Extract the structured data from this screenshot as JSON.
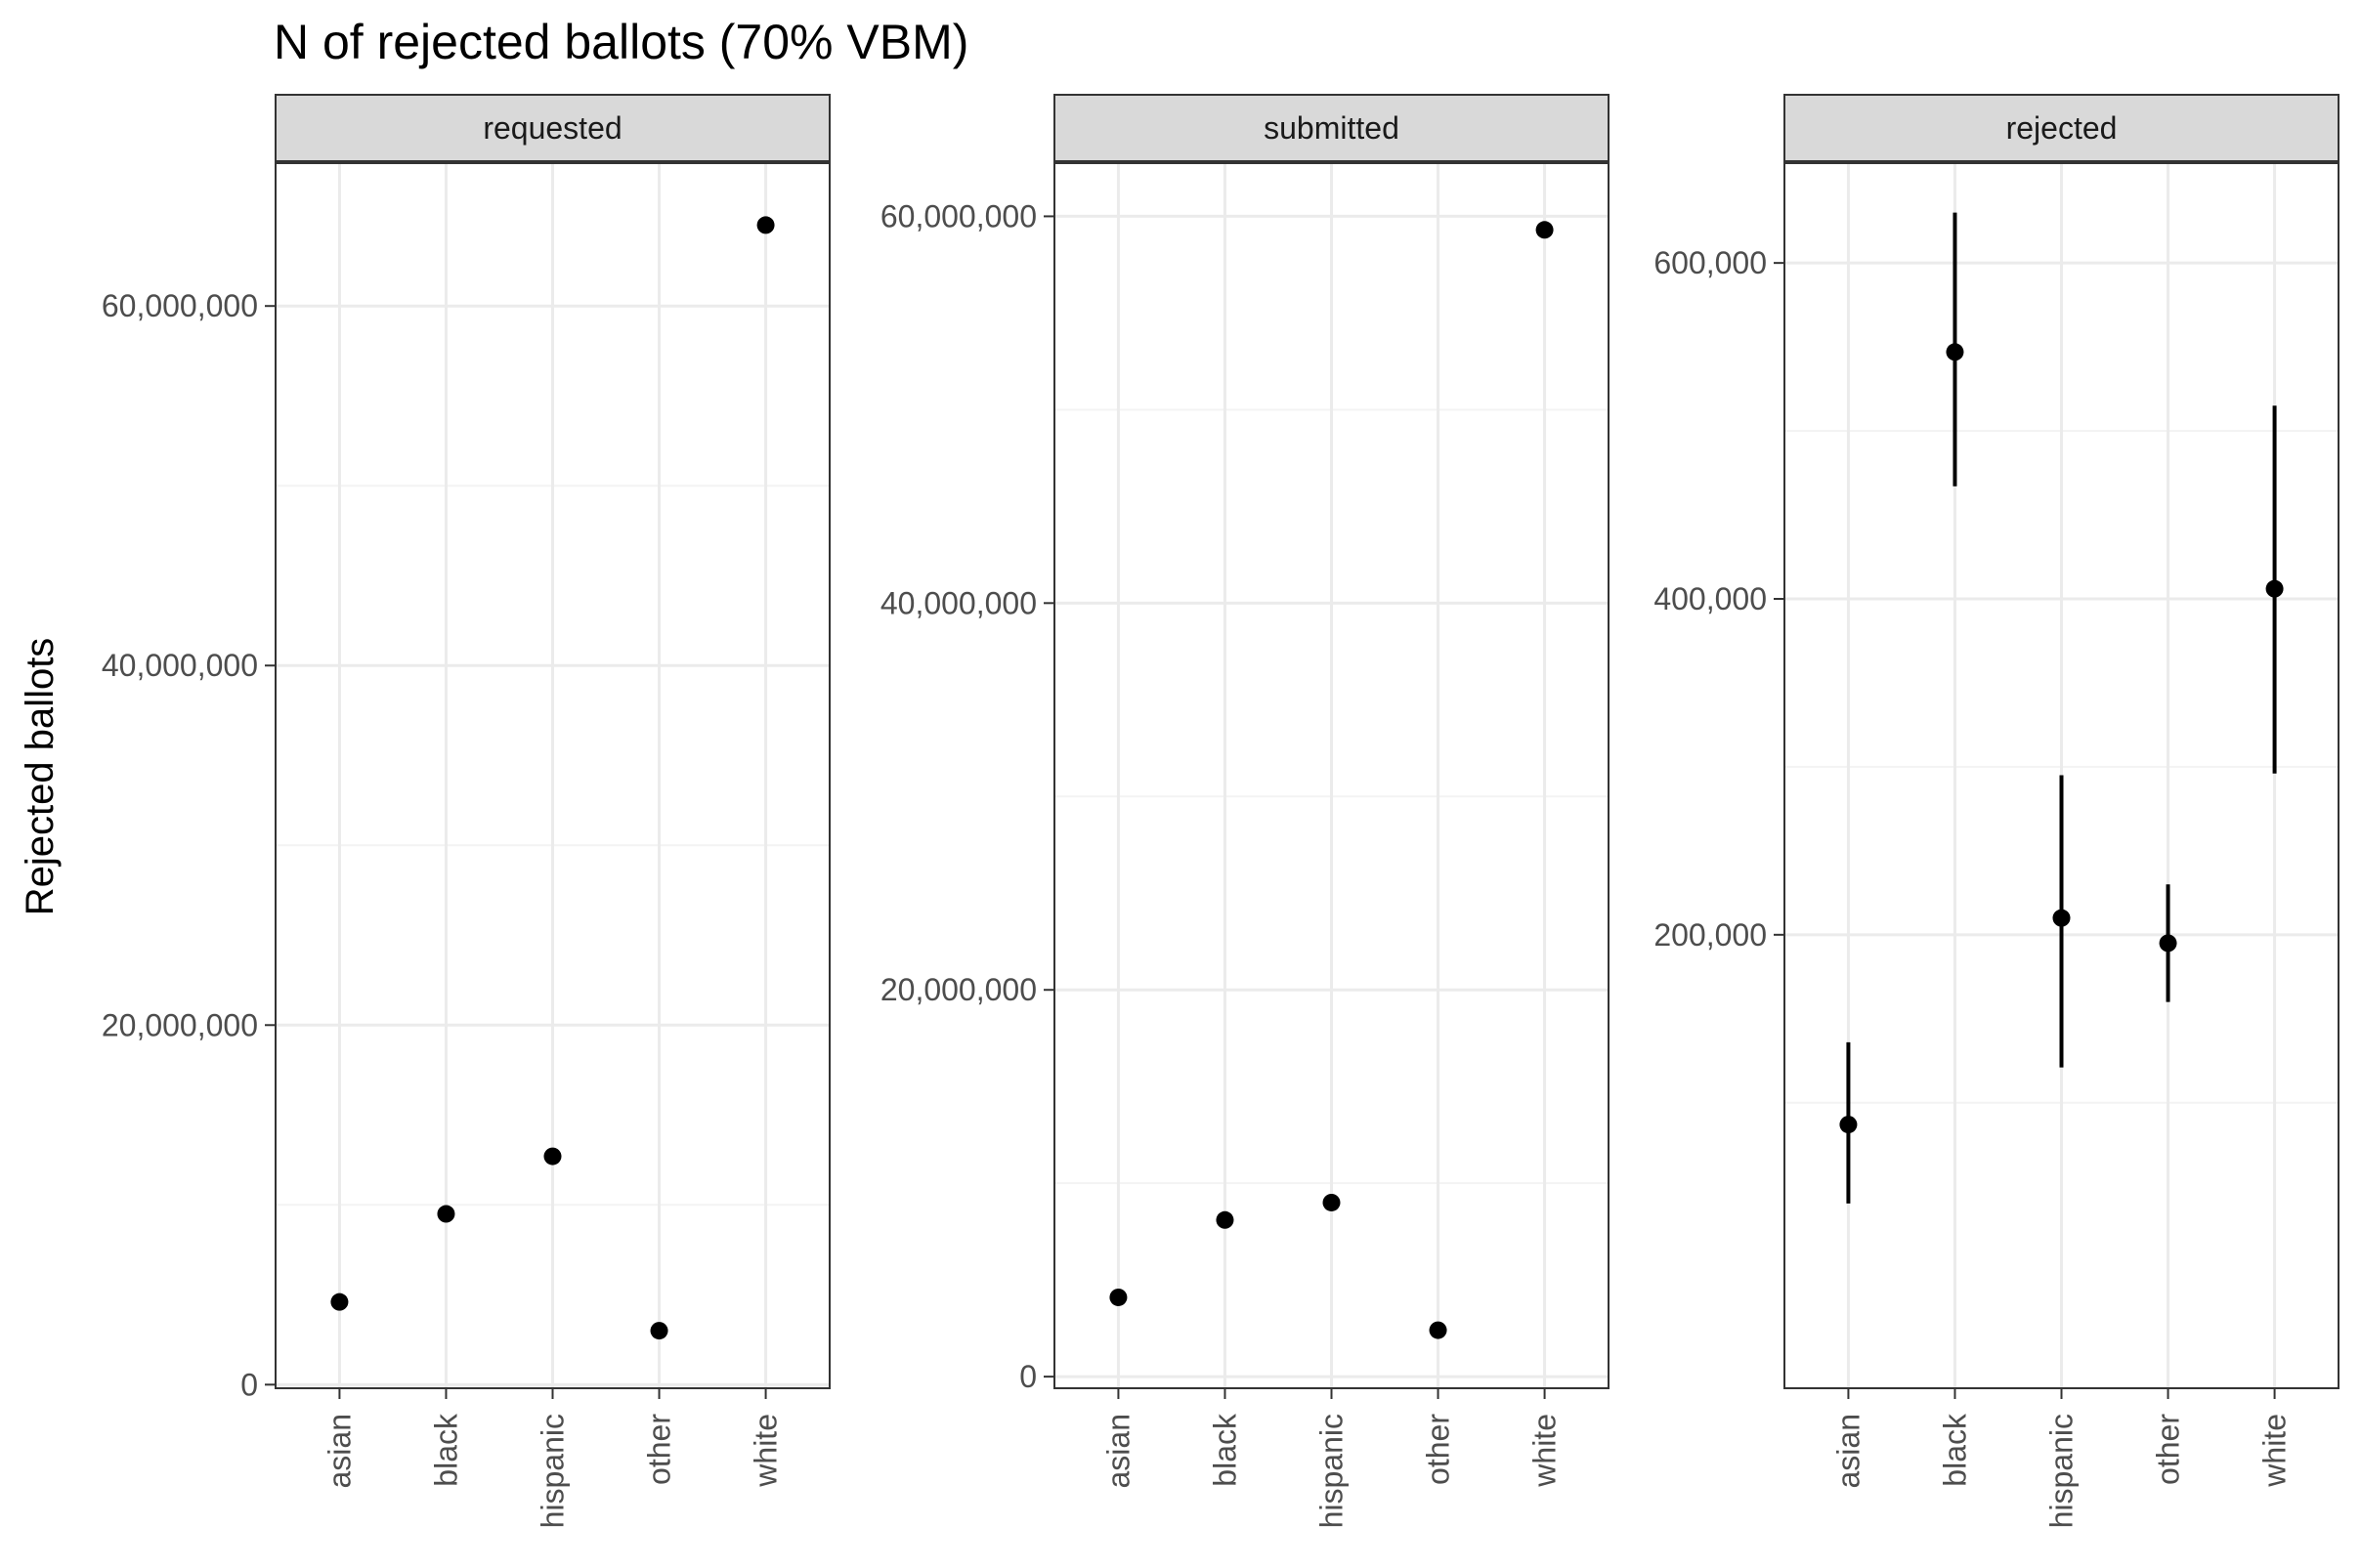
{
  "chart_data": {
    "type": "scatter",
    "title": "N of rejected ballots (70% VBM)",
    "ylabel": "Rejected ballots",
    "xlabel": "",
    "categories": [
      "asian",
      "black",
      "hispanic",
      "other",
      "white"
    ],
    "grid": true,
    "legend": "none",
    "panels": [
      {
        "strip": "requested",
        "ylim": [
          -200000,
          68000000
        ],
        "yticks": [
          0,
          20000000,
          40000000,
          60000000
        ],
        "ytick_labels": [
          "0",
          "20,000,000",
          "40,000,000",
          "60,000,000"
        ],
        "points": [
          {
            "x": "asian",
            "y": 4600000
          },
          {
            "x": "black",
            "y": 9500000
          },
          {
            "x": "hispanic",
            "y": 12700000
          },
          {
            "x": "other",
            "y": 3000000
          },
          {
            "x": "white",
            "y": 64500000
          }
        ]
      },
      {
        "strip": "submitted",
        "ylim": [
          -600000,
          62800000
        ],
        "yticks": [
          0,
          20000000,
          40000000,
          60000000
        ],
        "ytick_labels": [
          "0",
          "20,000,000",
          "40,000,000",
          "60,000,000"
        ],
        "points": [
          {
            "x": "asian",
            "y": 4100000
          },
          {
            "x": "black",
            "y": 8100000
          },
          {
            "x": "hispanic",
            "y": 9000000
          },
          {
            "x": "other",
            "y": 2400000
          },
          {
            "x": "white",
            "y": 59300000
          }
        ]
      },
      {
        "strip": "rejected",
        "ylim": [
          -70000,
          660000
        ],
        "yticks": [
          200000,
          400000,
          600000
        ],
        "ytick_labels": [
          "200,000",
          "400,000",
          "600,000"
        ],
        "points": [
          {
            "x": "asian",
            "y": 87000,
            "ymin": 40000,
            "ymax": 136000
          },
          {
            "x": "black",
            "y": 547000,
            "ymin": 467000,
            "ymax": 630000
          },
          {
            "x": "hispanic",
            "y": 210000,
            "ymin": 121000,
            "ymax": 295000
          },
          {
            "x": "other",
            "y": 195000,
            "ymin": 160000,
            "ymax": 230000
          },
          {
            "x": "white",
            "y": 406000,
            "ymin": 296000,
            "ymax": 515000
          }
        ]
      }
    ]
  },
  "colors": {
    "strip_fill": "#d9d9d9",
    "grid_major": "#ebebeb",
    "grid_minor": "#f3f3f3",
    "border": "#333333",
    "marks": "#000000",
    "tick_text": "#4d4d4d"
  }
}
